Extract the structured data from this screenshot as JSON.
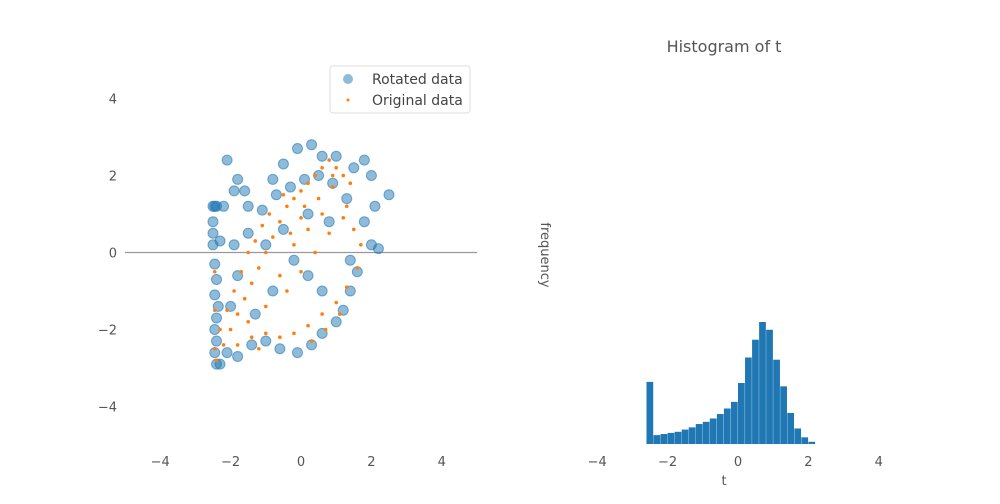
{
  "colors": {
    "rotated": "#1f77b4",
    "original": "#ff7f0e",
    "hline": "#999999",
    "text": "#555555"
  },
  "chart_data": [
    {
      "type": "scatter",
      "title": "",
      "xlabel": "",
      "ylabel": "",
      "xlim": [
        -5,
        5
      ],
      "ylim": [
        -5,
        5
      ],
      "xticks": [
        -4,
        -2,
        0,
        2,
        4
      ],
      "yticks": [
        -4,
        -2,
        0,
        2,
        4
      ],
      "xtick_labels": [
        "−4",
        "−2",
        "0",
        "2",
        "4"
      ],
      "ytick_labels": [
        "−4",
        "−2",
        "0",
        "2",
        "4"
      ],
      "grid": false,
      "legend": "top-right",
      "hline_y": 0,
      "series": [
        {
          "name": "Rotated data",
          "color": "#1f77b4",
          "marker": "circle",
          "points": [
            [
              -2.5,
              1.2
            ],
            [
              -2.45,
              1.2
            ],
            [
              -2.4,
              1.2
            ],
            [
              -2.5,
              0.8
            ],
            [
              -2.5,
              0.5
            ],
            [
              -2.5,
              0.2
            ],
            [
              -2.4,
              -2.9
            ],
            [
              -2.3,
              -2.9
            ],
            [
              -2.45,
              -2.6
            ],
            [
              -2.4,
              -2.3
            ],
            [
              -2.45,
              -2.0
            ],
            [
              -2.4,
              -1.7
            ],
            [
              -2.35,
              -1.4
            ],
            [
              -2.45,
              -1.1
            ],
            [
              -2.4,
              -0.7
            ],
            [
              -2.45,
              -0.3
            ],
            [
              -2.1,
              2.4
            ],
            [
              -1.8,
              1.9
            ],
            [
              -1.6,
              1.6
            ],
            [
              -1.5,
              1.2
            ],
            [
              -1.9,
              1.6
            ],
            [
              -2.2,
              1.2
            ],
            [
              -0.8,
              1.9
            ],
            [
              -0.5,
              2.3
            ],
            [
              -0.1,
              2.7
            ],
            [
              0.3,
              2.8
            ],
            [
              0.6,
              2.5
            ],
            [
              1.0,
              2.5
            ],
            [
              1.5,
              2.2
            ],
            [
              1.8,
              2.4
            ],
            [
              2.0,
              2.0
            ],
            [
              2.5,
              1.5
            ],
            [
              2.1,
              1.2
            ],
            [
              1.8,
              0.8
            ],
            [
              1.6,
              -0.5
            ],
            [
              1.4,
              -1.0
            ],
            [
              1.2,
              -1.5
            ],
            [
              1.0,
              -1.8
            ],
            [
              0.6,
              -2.1
            ],
            [
              0.3,
              -2.4
            ],
            [
              -0.1,
              -2.6
            ],
            [
              -0.6,
              -2.5
            ],
            [
              -1.0,
              -2.3
            ],
            [
              -1.4,
              -2.4
            ],
            [
              -1.8,
              -2.7
            ],
            [
              -2.1,
              -2.6
            ],
            [
              -2.0,
              -1.4
            ],
            [
              -1.8,
              -0.6
            ],
            [
              -1.5,
              0.5
            ],
            [
              -1.1,
              1.1
            ],
            [
              -0.7,
              1.5
            ],
            [
              -0.3,
              1.7
            ],
            [
              0.1,
              1.9
            ],
            [
              0.5,
              2.0
            ],
            [
              0.9,
              1.8
            ],
            [
              1.3,
              1.4
            ],
            [
              -0.2,
              -0.2
            ],
            [
              0.2,
              -0.6
            ],
            [
              0.6,
              -1.0
            ],
            [
              -0.8,
              -1.0
            ],
            [
              -1.3,
              -1.6
            ],
            [
              1.4,
              -0.2
            ],
            [
              2.0,
              0.2
            ],
            [
              2.2,
              0.1
            ],
            [
              -1.9,
              0.2
            ],
            [
              -2.3,
              0.3
            ],
            [
              0.8,
              0.8
            ],
            [
              0.2,
              1.0
            ],
            [
              -0.5,
              0.6
            ],
            [
              -1.0,
              0.2
            ]
          ]
        },
        {
          "name": "Original data",
          "color": "#ff7f0e",
          "marker": "point",
          "points": [
            [
              -2.4,
              -2.8
            ],
            [
              -2.2,
              -2.4
            ],
            [
              -2.0,
              -2.0
            ],
            [
              -1.8,
              -1.6
            ],
            [
              -1.6,
              -1.2
            ],
            [
              -1.4,
              -0.8
            ],
            [
              -1.2,
              -0.4
            ],
            [
              -1.0,
              0.0
            ],
            [
              -0.8,
              0.4
            ],
            [
              -0.6,
              0.8
            ],
            [
              -0.4,
              1.2
            ],
            [
              -0.2,
              1.4
            ],
            [
              0.0,
              1.6
            ],
            [
              0.2,
              1.8
            ],
            [
              0.4,
              2.0
            ],
            [
              0.6,
              2.2
            ],
            [
              0.8,
              2.4
            ],
            [
              1.0,
              2.2
            ],
            [
              1.2,
              2.0
            ],
            [
              1.4,
              1.8
            ],
            [
              -2.3,
              -2.0
            ],
            [
              -2.1,
              -1.5
            ],
            [
              -1.9,
              -1.0
            ],
            [
              -1.7,
              -0.5
            ],
            [
              -1.5,
              0.0
            ],
            [
              -1.3,
              0.3
            ],
            [
              -1.1,
              0.7
            ],
            [
              -0.9,
              1.0
            ],
            [
              -0.5,
              1.5
            ],
            [
              0.1,
              1.2
            ],
            [
              0.5,
              1.4
            ],
            [
              0.9,
              1.7
            ],
            [
              1.3,
              1.2
            ],
            [
              1.5,
              0.6
            ],
            [
              1.7,
              0.2
            ],
            [
              1.6,
              -0.4
            ],
            [
              1.3,
              -0.9
            ],
            [
              1.0,
              -1.3
            ],
            [
              0.6,
              -1.6
            ],
            [
              0.2,
              -1.9
            ],
            [
              -0.2,
              -2.1
            ],
            [
              -0.6,
              -2.2
            ],
            [
              -1.0,
              -2.1
            ],
            [
              -1.4,
              -2.2
            ],
            [
              -1.8,
              -2.4
            ],
            [
              -0.4,
              -1.0
            ],
            [
              0.0,
              -0.5
            ],
            [
              0.4,
              0.0
            ],
            [
              0.8,
              0.5
            ],
            [
              1.2,
              0.9
            ],
            [
              -1.0,
              -1.4
            ],
            [
              -0.6,
              -0.6
            ],
            [
              -0.2,
              0.2
            ],
            [
              0.2,
              0.6
            ],
            [
              0.6,
              1.0
            ],
            [
              -2.45,
              -2.5
            ],
            [
              -2.45,
              -1.5
            ],
            [
              -2.45,
              -0.5
            ],
            [
              1.1,
              -1.6
            ],
            [
              0.7,
              -2.0
            ],
            [
              0.3,
              -2.3
            ],
            [
              -1.5,
              -1.8
            ],
            [
              -1.2,
              -2.5
            ],
            [
              0.9,
              2.0
            ],
            [
              0.0,
              0.9
            ],
            [
              -0.3,
              0.5
            ]
          ]
        }
      ]
    },
    {
      "type": "bar",
      "title": "Histogram of t",
      "xlabel": "t",
      "ylabel": "frequency",
      "xlim": [
        -5,
        5
      ],
      "xticks": [
        -4,
        -2,
        0,
        2,
        4
      ],
      "xtick_labels": [
        "−4",
        "−2",
        "0",
        "2",
        "4"
      ],
      "grid": false,
      "bin_width": 0.2,
      "bin_edges_start": -2.6,
      "counts": [
        56,
        8,
        9,
        10,
        11,
        13,
        15,
        18,
        20,
        23,
        27,
        32,
        38,
        55,
        78,
        94,
        110,
        103,
        76,
        52,
        28,
        14,
        6,
        2
      ]
    }
  ]
}
